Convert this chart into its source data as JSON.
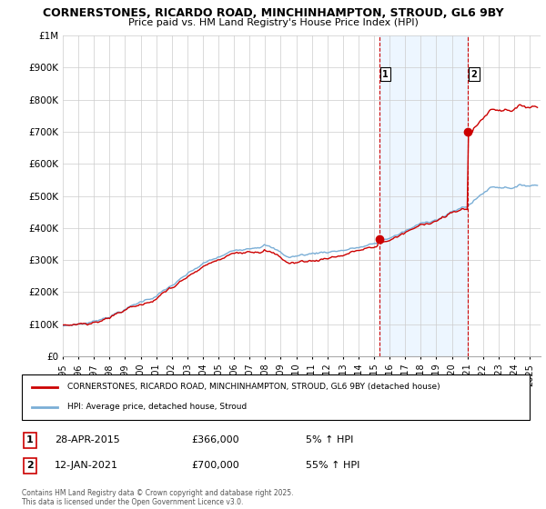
{
  "title_line1": "CORNERSTONES, RICARDO ROAD, MINCHINHAMPTON, STROUD, GL6 9BY",
  "title_line2": "Price paid vs. HM Land Registry's House Price Index (HPI)",
  "legend_label_red": "CORNERSTONES, RICARDO ROAD, MINCHINHAMPTON, STROUD, GL6 9BY (detached house)",
  "legend_label_blue": "HPI: Average price, detached house, Stroud",
  "footer": "Contains HM Land Registry data © Crown copyright and database right 2025.\nThis data is licensed under the Open Government Licence v3.0.",
  "sale1_label": "1",
  "sale1_date": "28-APR-2015",
  "sale1_price": "£366,000",
  "sale1_hpi": "5% ↑ HPI",
  "sale1_year": 2015.33,
  "sale1_value": 366000,
  "sale2_label": "2",
  "sale2_date": "12-JAN-2021",
  "sale2_price": "£700,000",
  "sale2_hpi": "55% ↑ HPI",
  "sale2_year": 2021.04,
  "sale2_value": 700000,
  "color_red": "#cc0000",
  "color_blue": "#7aaed6",
  "color_vline": "#cc0000",
  "color_shade": "#ddeeff",
  "ylim_min": 0,
  "ylim_max": 1000000,
  "xlim_min": 1995,
  "xlim_max": 2025.7,
  "yticks": [
    0,
    100000,
    200000,
    300000,
    400000,
    500000,
    600000,
    700000,
    800000,
    900000,
    1000000
  ],
  "ytick_labels": [
    "£0",
    "£100K",
    "£200K",
    "£300K",
    "£400K",
    "£500K",
    "£600K",
    "£700K",
    "£800K",
    "£900K",
    "£1M"
  ],
  "xtick_years": [
    1995,
    1996,
    1997,
    1998,
    1999,
    2000,
    2001,
    2002,
    2003,
    2004,
    2005,
    2006,
    2007,
    2008,
    2009,
    2010,
    2011,
    2012,
    2013,
    2014,
    2015,
    2016,
    2017,
    2018,
    2019,
    2020,
    2021,
    2022,
    2023,
    2024,
    2025
  ]
}
